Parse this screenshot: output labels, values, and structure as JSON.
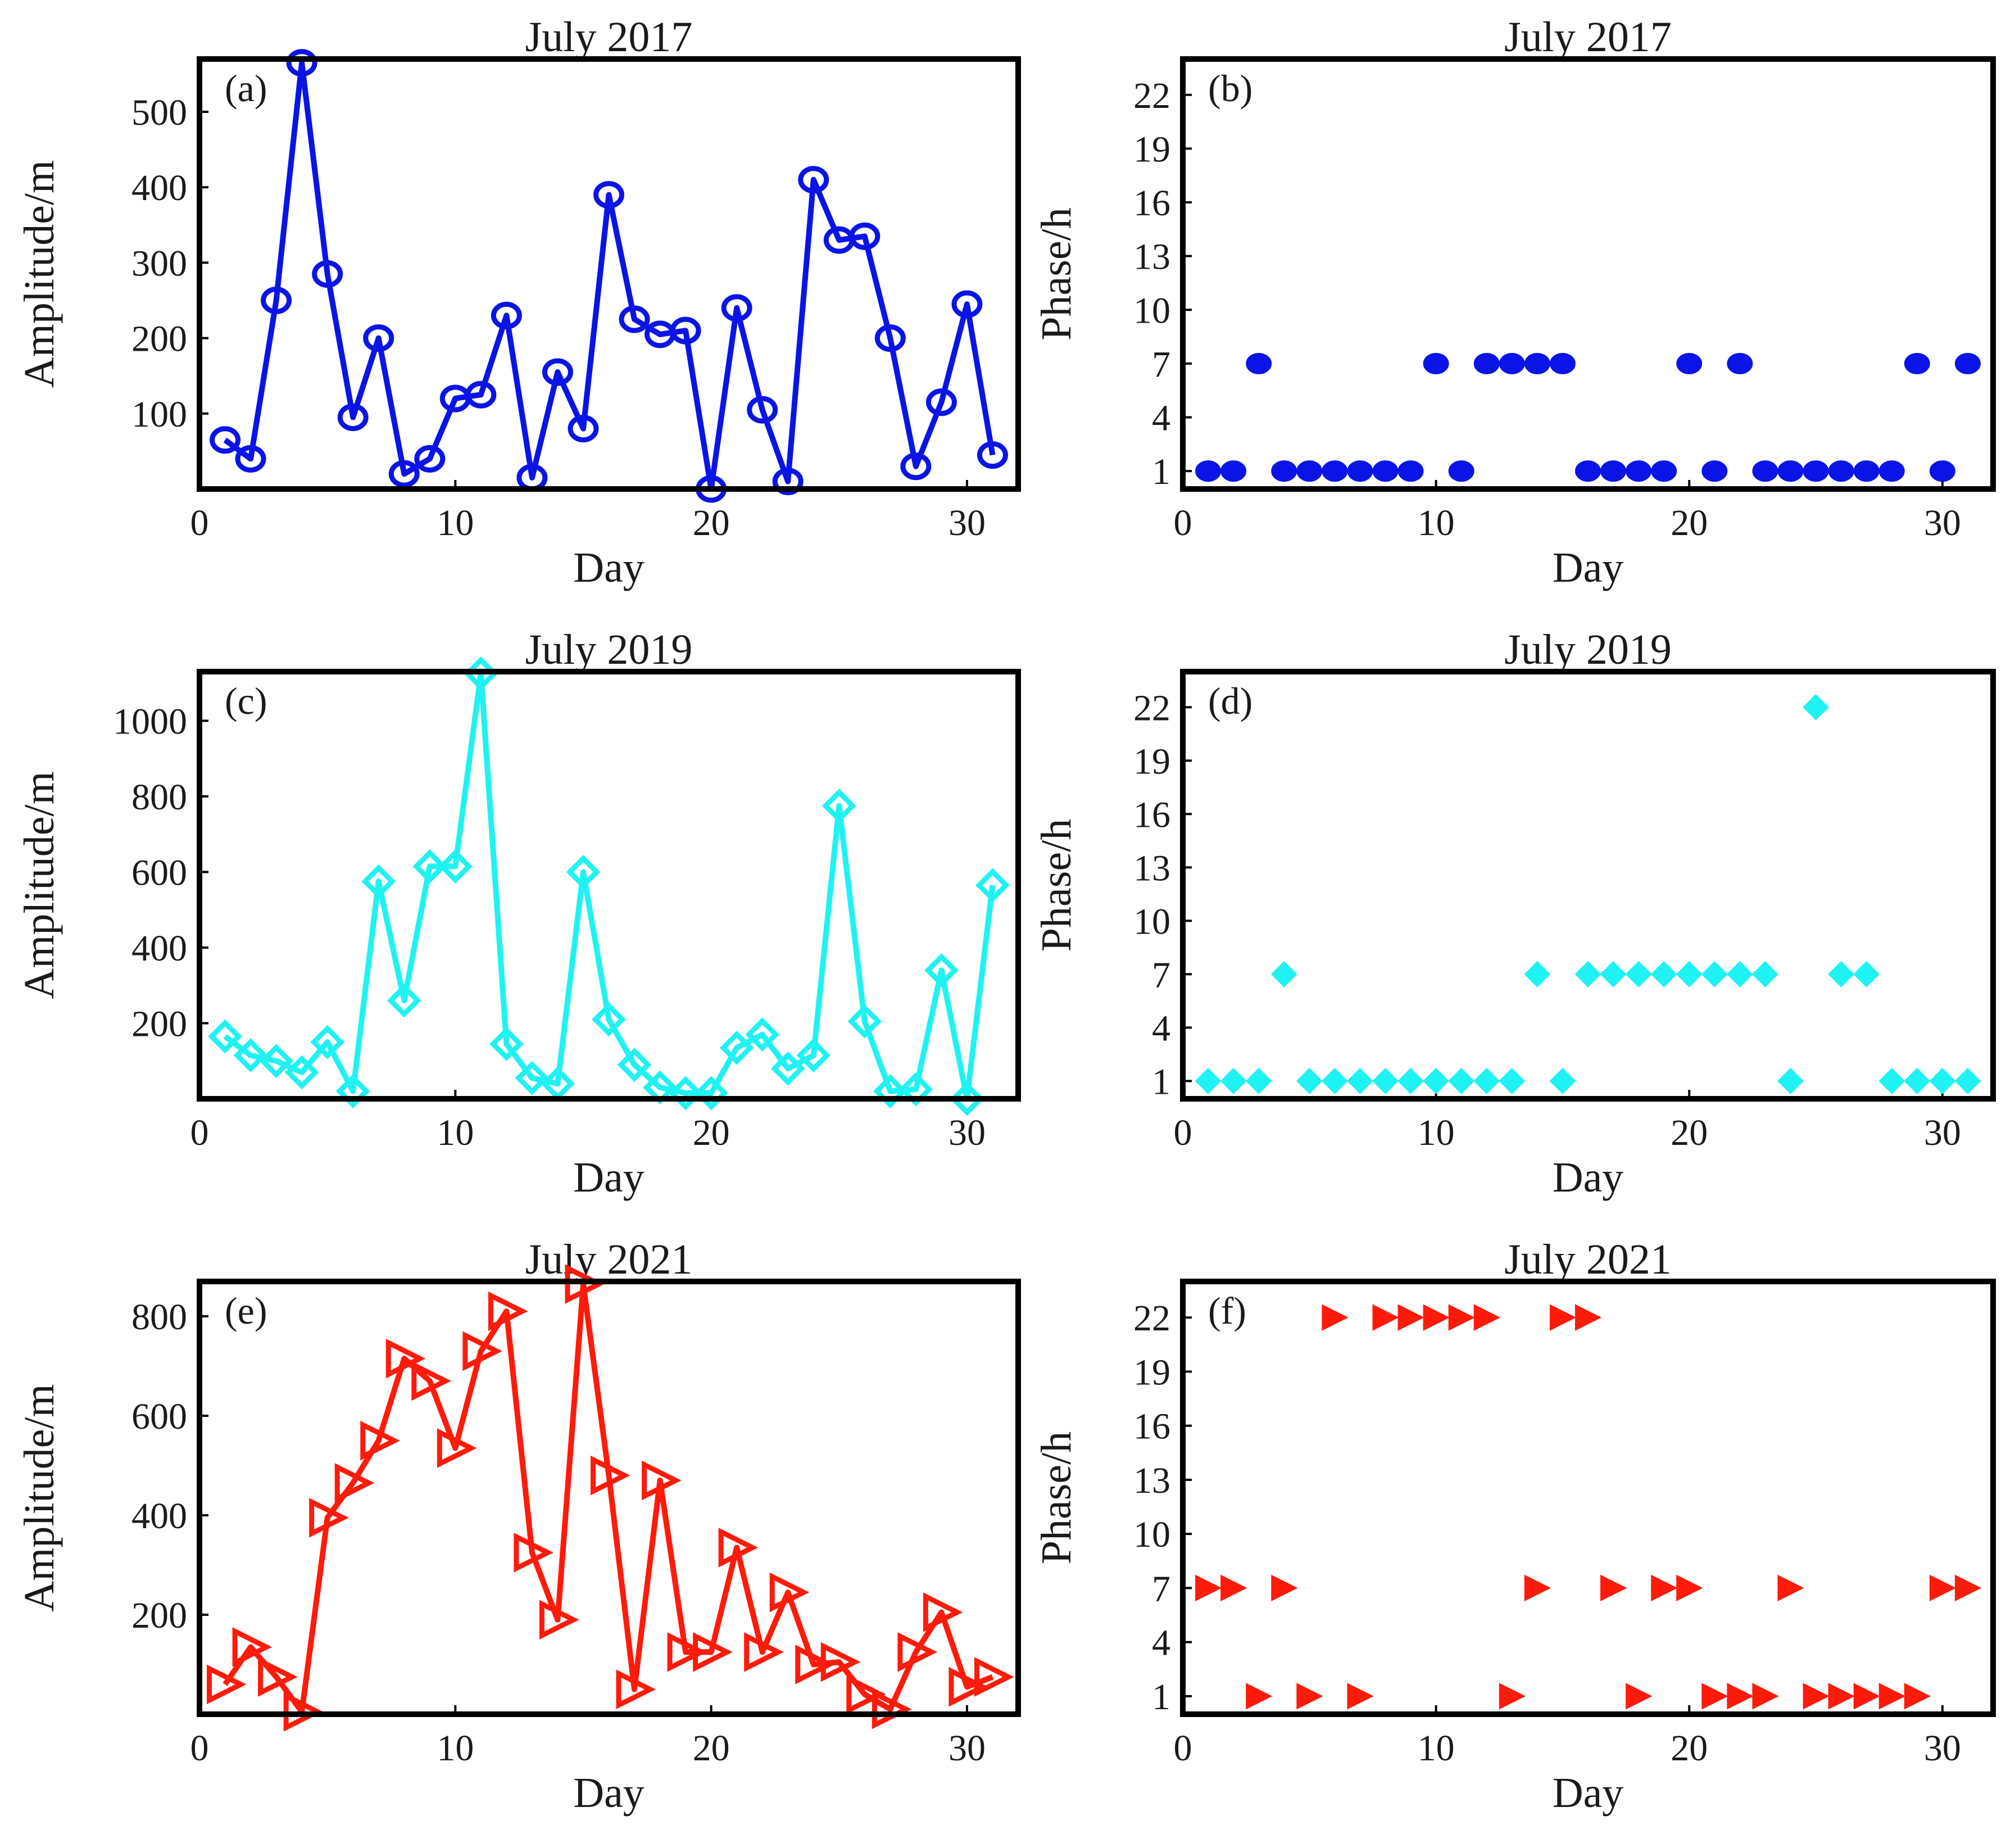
{
  "colors": {
    "p2017": "#0a14e6",
    "p2019": "#1ff2f2",
    "p2021": "#ff1a0a"
  },
  "chart_data": [
    {
      "id": "a",
      "type": "line",
      "panel_label": "(a)",
      "title": "July 2017",
      "xlabel": "Day",
      "ylabel": "Amplitude/m",
      "xlim": [
        0,
        32
      ],
      "ylim": [
        0,
        570
      ],
      "xticks": [
        0,
        10,
        20,
        30
      ],
      "yticks": [
        100,
        200,
        300,
        400,
        500
      ],
      "marker": "circle",
      "filled": false,
      "color_key": "p2017",
      "x": [
        1,
        2,
        3,
        4,
        5,
        6,
        7,
        8,
        9,
        10,
        11,
        12,
        13,
        14,
        15,
        16,
        17,
        18,
        19,
        20,
        21,
        22,
        23,
        24,
        25,
        26,
        27,
        28,
        29,
        30,
        31
      ],
      "y": [
        65,
        40,
        250,
        565,
        285,
        95,
        200,
        20,
        40,
        120,
        125,
        230,
        15,
        155,
        80,
        390,
        225,
        205,
        210,
        0,
        240,
        105,
        10,
        410,
        330,
        335,
        200,
        30,
        115,
        245,
        45
      ]
    },
    {
      "id": "b",
      "type": "scatter",
      "panel_label": "(b)",
      "title": "July 2017",
      "xlabel": "Day",
      "ylabel": "Phase/h",
      "xlim": [
        0,
        32
      ],
      "ylim": [
        0,
        24
      ],
      "xticks": [
        0,
        10,
        20,
        30
      ],
      "yticks": [
        1,
        4,
        7,
        10,
        13,
        16,
        19,
        22
      ],
      "marker": "circle",
      "filled": true,
      "color_key": "p2017",
      "x": [
        1,
        2,
        3,
        4,
        5,
        6,
        7,
        8,
        9,
        10,
        11,
        12,
        13,
        14,
        15,
        16,
        17,
        18,
        19,
        20,
        21,
        22,
        23,
        24,
        25,
        26,
        27,
        28,
        29,
        30,
        31
      ],
      "y": [
        1,
        1,
        7,
        1,
        1,
        1,
        1,
        1,
        1,
        7,
        1,
        7,
        7,
        7,
        7,
        1,
        1,
        1,
        1,
        7,
        1,
        7,
        1,
        1,
        1,
        1,
        1,
        1,
        7,
        1,
        7
      ]
    },
    {
      "id": "c",
      "type": "line",
      "panel_label": "(c)",
      "title": "July 2019",
      "xlabel": "Day",
      "ylabel": "Amplitude/m",
      "xlim": [
        0,
        32
      ],
      "ylim": [
        0,
        1130
      ],
      "xticks": [
        0,
        10,
        20,
        30
      ],
      "yticks": [
        200,
        400,
        600,
        800,
        1000
      ],
      "marker": "diamond",
      "filled": false,
      "color_key": "p2019",
      "x": [
        1,
        2,
        3,
        4,
        5,
        6,
        7,
        8,
        9,
        10,
        11,
        12,
        13,
        14,
        15,
        16,
        17,
        18,
        19,
        20,
        21,
        22,
        23,
        24,
        25,
        26,
        27,
        28,
        29,
        30,
        31
      ],
      "y": [
        165,
        115,
        100,
        70,
        150,
        20,
        575,
        260,
        615,
        615,
        1125,
        145,
        55,
        40,
        600,
        210,
        90,
        30,
        15,
        15,
        135,
        170,
        80,
        115,
        775,
        205,
        20,
        25,
        340,
        0,
        565
      ]
    },
    {
      "id": "d",
      "type": "scatter",
      "panel_label": "(d)",
      "title": "July 2019",
      "xlabel": "Day",
      "ylabel": "Phase/h",
      "xlim": [
        0,
        32
      ],
      "ylim": [
        0,
        24
      ],
      "xticks": [
        0,
        10,
        20,
        30
      ],
      "yticks": [
        1,
        4,
        7,
        10,
        13,
        16,
        19,
        22
      ],
      "marker": "diamond",
      "filled": true,
      "color_key": "p2019",
      "x": [
        1,
        2,
        3,
        4,
        5,
        6,
        7,
        8,
        9,
        10,
        11,
        12,
        13,
        14,
        15,
        16,
        17,
        18,
        19,
        20,
        21,
        22,
        23,
        24,
        25,
        26,
        27,
        28,
        29,
        30,
        31
      ],
      "y": [
        1,
        1,
        1,
        7,
        1,
        1,
        1,
        1,
        1,
        1,
        1,
        1,
        1,
        7,
        1,
        7,
        7,
        7,
        7,
        7,
        7,
        7,
        7,
        1,
        22,
        7,
        7,
        1,
        1,
        1,
        1
      ]
    },
    {
      "id": "e",
      "type": "line",
      "panel_label": "(e)",
      "title": "July 2021",
      "xlabel": "Day",
      "ylabel": "Amplitude/m",
      "xlim": [
        0,
        32
      ],
      "ylim": [
        0,
        870
      ],
      "xticks": [
        0,
        10,
        20,
        30
      ],
      "yticks": [
        200,
        400,
        600,
        800
      ],
      "marker": "triangle-right",
      "filled": false,
      "color_key": "p2021",
      "x": [
        1,
        2,
        3,
        4,
        5,
        6,
        7,
        8,
        9,
        10,
        11,
        12,
        13,
        14,
        15,
        16,
        17,
        18,
        19,
        20,
        21,
        22,
        23,
        24,
        25,
        26,
        27,
        28,
        29,
        30,
        31
      ],
      "y": [
        60,
        135,
        75,
        5,
        395,
        465,
        550,
        715,
        670,
        535,
        730,
        810,
        325,
        190,
        865,
        480,
        50,
        470,
        125,
        125,
        335,
        125,
        245,
        100,
        105,
        40,
        10,
        125,
        205,
        55,
        75
      ]
    },
    {
      "id": "f",
      "type": "scatter",
      "panel_label": "(f)",
      "title": "July 2021",
      "xlabel": "Day",
      "ylabel": "Phase/h",
      "xlim": [
        0,
        32
      ],
      "ylim": [
        0,
        24
      ],
      "xticks": [
        0,
        10,
        20,
        30
      ],
      "yticks": [
        1,
        4,
        7,
        10,
        13,
        16,
        19,
        22
      ],
      "marker": "triangle-right",
      "filled": true,
      "color_key": "p2021",
      "x": [
        1,
        2,
        3,
        4,
        5,
        6,
        7,
        8,
        9,
        10,
        11,
        12,
        13,
        14,
        15,
        16,
        17,
        18,
        19,
        20,
        21,
        22,
        23,
        24,
        25,
        26,
        27,
        28,
        29,
        30,
        31
      ],
      "y": [
        7,
        7,
        1,
        7,
        1,
        22,
        1,
        22,
        22,
        22,
        22,
        22,
        1,
        7,
        22,
        22,
        7,
        1,
        7,
        7,
        1,
        1,
        1,
        7,
        1,
        1,
        1,
        1,
        1,
        7,
        7
      ]
    }
  ]
}
